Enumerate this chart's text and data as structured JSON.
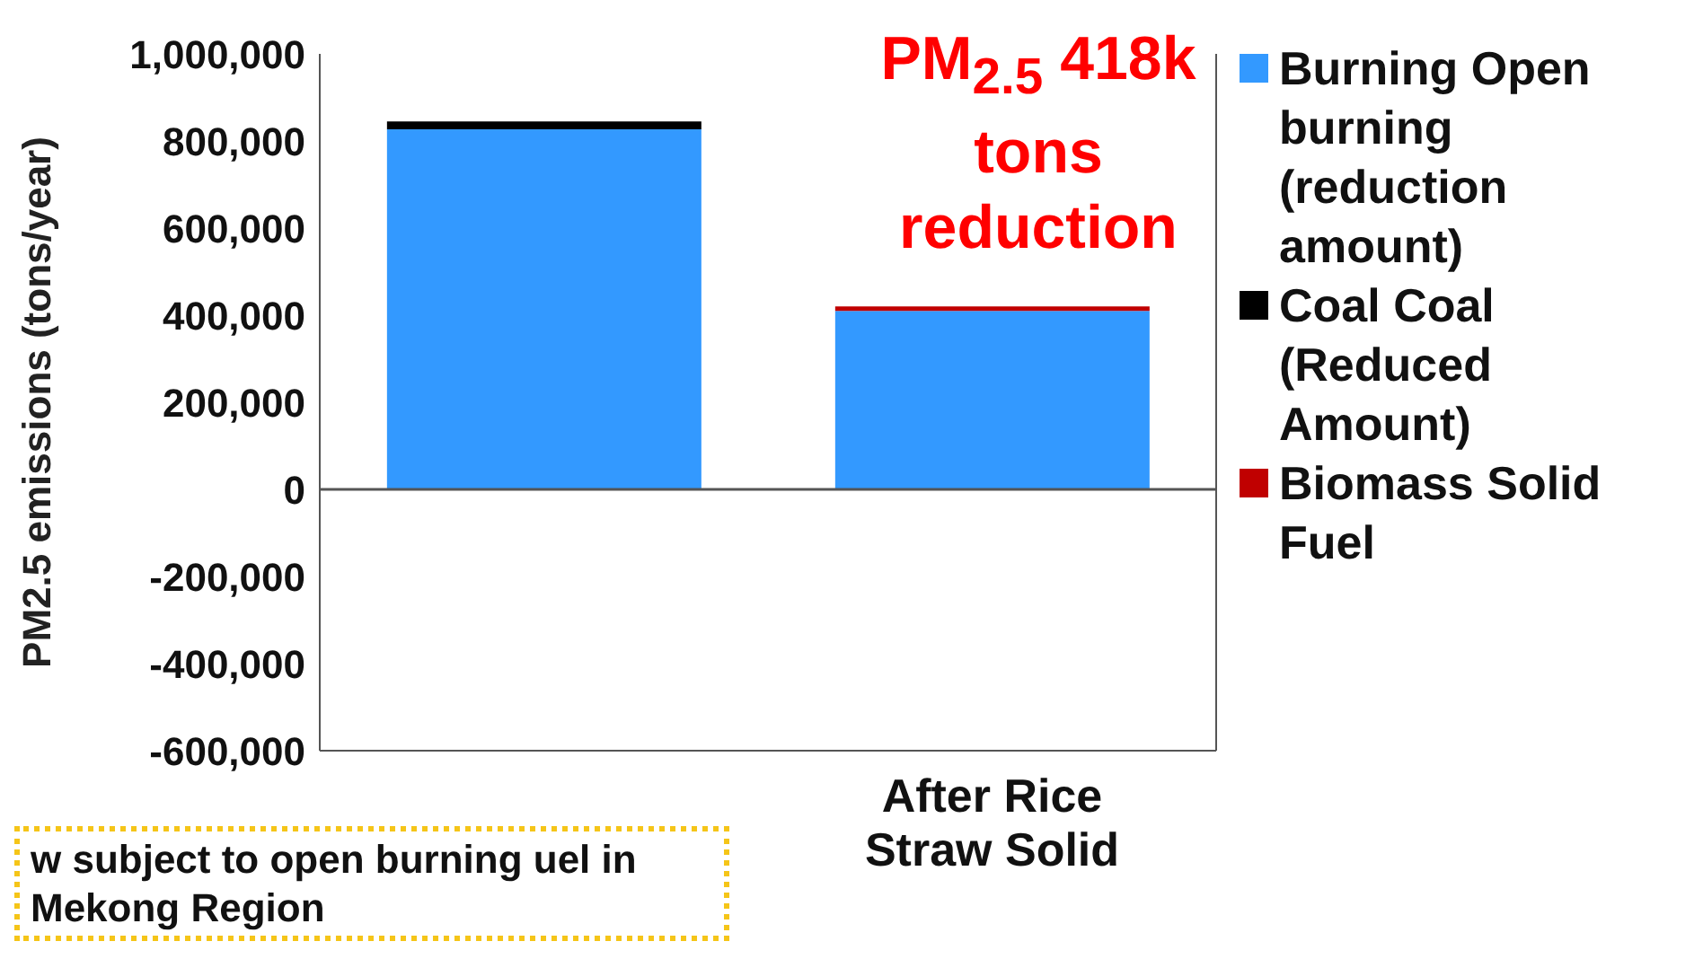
{
  "chart_data": {
    "type": "bar",
    "stacked": true,
    "ylabel": "PM2.5 emissions (tons/year)",
    "categories": [
      null,
      "After Rice Straw Solid"
    ],
    "series": [
      {
        "name": "Burning Open burning (reduction amount)",
        "color": "#3399ff",
        "values": [
          827000,
          410000
        ]
      },
      {
        "name": "Coal Coal (Reduced Amount)",
        "color": "#000000",
        "values": [
          18000,
          0
        ]
      },
      {
        "name": "Biomass Solid Fuel",
        "color": "#c00000",
        "values": [
          0,
          10000
        ]
      }
    ],
    "ylim": [
      -600000,
      1000000
    ],
    "yticks": [
      {
        "value": -600000,
        "label": "-600,000"
      },
      {
        "value": -400000,
        "label": "-400,000"
      },
      {
        "value": -200000,
        "label": "-200,000"
      },
      0,
      {
        "value": 200000,
        "label": "200,000"
      },
      {
        "value": 400000,
        "label": "400,000"
      },
      {
        "value": 600000,
        "label": "600,000"
      },
      {
        "value": 800000,
        "label": "800,000"
      },
      {
        "value": 1000000,
        "label": "1,000,000"
      }
    ],
    "ref_lines": [
      {
        "axis": "y",
        "value": 0,
        "color": "#555555"
      }
    ],
    "legend": "right",
    "annotations": [
      "PM$_{2.5}$ 418k tons reduction",
      "w subject to open burning uel in Mekong Region"
    ]
  }
}
